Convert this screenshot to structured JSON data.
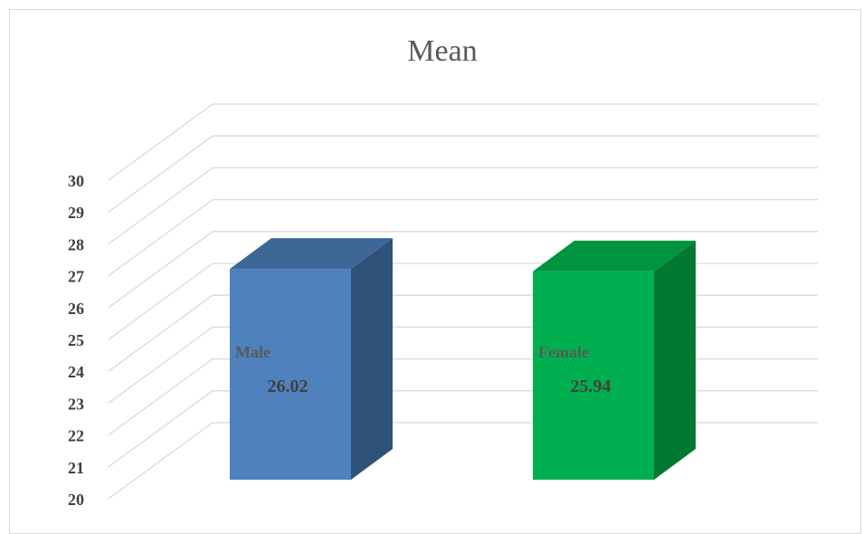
{
  "chart_data": {
    "type": "bar",
    "title": "Mean",
    "categories": [
      "Male",
      "Female"
    ],
    "values": [
      26.02,
      25.94
    ],
    "ylim": [
      20,
      30
    ],
    "yticks": [
      "20",
      "21",
      "22",
      "23",
      "24",
      "25",
      "26",
      "27",
      "28",
      "29",
      "30"
    ],
    "grid": true,
    "legend": "none",
    "style": "3d-column",
    "colors": {
      "Male": {
        "front": "#4f81bd",
        "side": "#2f527a",
        "top": "#3d6796"
      },
      "Female": {
        "front": "#00b050",
        "side": "#007a33",
        "top": "#00943f"
      },
      "gridline": "#d9d9d9"
    }
  }
}
